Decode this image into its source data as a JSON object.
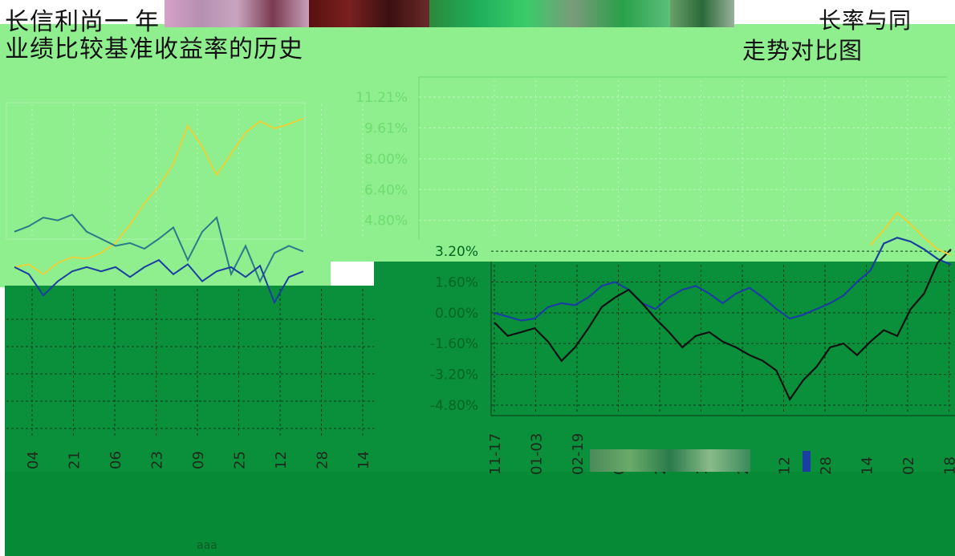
{
  "titles": {
    "left_line1": "长信利尚一",
    "left_line1_tail": "年",
    "left_line2": "业绩比较基准收益率的历史",
    "right_line1": "长率与同",
    "right_line2": "走势对比图"
  },
  "footer": {
    "caption": "aaa"
  },
  "colors": {
    "light_green": "#8fef8f",
    "dark_green": "#0a8f3a",
    "series_blue": "#1a3fa0",
    "series_yellow": "#e8d23a",
    "series_black": "#111111",
    "series_teal": "#2a7a8a"
  },
  "chart_data": [
    {
      "type": "line",
      "x_tick_labels": [
        "04",
        "21",
        "06",
        "23",
        "09",
        "25",
        "12",
        "28",
        "14"
      ],
      "series": [
        {
          "color_key": "series_yellow",
          "values": [
            -0.5,
            -0.3,
            -1.0,
            -0.2,
            0.2,
            0.1,
            0.5,
            1.2,
            2.5,
            4.0,
            5.2,
            6.8,
            9.5,
            8.0,
            6.0,
            7.5,
            9.0,
            9.8,
            9.3,
            9.6,
            10.0
          ]
        },
        {
          "color_key": "series_teal",
          "values": [
            2.0,
            2.4,
            3.0,
            2.8,
            3.2,
            2.0,
            1.5,
            1.0,
            1.2,
            0.8,
            1.5,
            2.3,
            0.0,
            2.0,
            3.0,
            -1.0,
            1.0,
            -1.5,
            0.5,
            1.0,
            0.6
          ]
        },
        {
          "color_key": "series_blue",
          "values": [
            -0.5,
            -1.0,
            -2.5,
            -1.5,
            -0.8,
            -0.5,
            -0.8,
            -0.5,
            -1.2,
            -0.5,
            0.0,
            -1.0,
            -0.3,
            -1.5,
            -0.8,
            -0.5,
            -1.2,
            -0.4,
            -3.0,
            -1.2,
            -0.8
          ]
        }
      ]
    },
    {
      "type": "line",
      "y_tick_labels": [
        "11.21%",
        "9.61%",
        "8.00%",
        "6.40%",
        "4.80%",
        "3.20%",
        "1.60%",
        "0.00%",
        "-1.60%",
        "-3.20%",
        "-4.80%"
      ],
      "y_ticks": [
        11.21,
        9.61,
        8.0,
        6.4,
        4.8,
        3.2,
        1.6,
        0.0,
        -1.6,
        -3.2,
        -4.8
      ],
      "ylim": [
        -4.8,
        11.21
      ],
      "x_tick_labels": [
        "11-17",
        "01-03",
        "02-19",
        "07",
        "24",
        "10",
        "26",
        "12",
        "28",
        "14",
        "02",
        "18"
      ],
      "series": [
        {
          "color_key": "series_blue",
          "values": [
            0.0,
            -0.2,
            -0.4,
            -0.3,
            0.3,
            0.5,
            0.4,
            0.8,
            1.4,
            1.6,
            1.2,
            0.5,
            0.2,
            0.8,
            1.2,
            1.4,
            1.0,
            0.5,
            1.0,
            1.3,
            0.8,
            0.2,
            -0.3,
            -0.1,
            0.2,
            0.5,
            0.9,
            1.6,
            2.2,
            3.6,
            3.9,
            3.7,
            3.3,
            2.8,
            2.5
          ]
        },
        {
          "color_key": "series_black",
          "values": [
            -0.5,
            -1.2,
            -1.0,
            -0.8,
            -1.5,
            -2.5,
            -1.8,
            -0.8,
            0.3,
            0.8,
            1.2,
            0.5,
            -0.3,
            -1.0,
            -1.8,
            -1.2,
            -1.0,
            -1.5,
            -1.8,
            -2.2,
            -2.5,
            -3.0,
            -4.5,
            -3.5,
            -2.8,
            -1.8,
            -1.6,
            -2.2,
            -1.5,
            -0.9,
            -1.2,
            0.2,
            1.0,
            2.6,
            3.3
          ]
        },
        {
          "color_key": "series_yellow",
          "values": [
            null,
            null,
            null,
            null,
            null,
            null,
            null,
            null,
            null,
            null,
            null,
            null,
            null,
            null,
            null,
            null,
            null,
            null,
            null,
            null,
            null,
            null,
            null,
            null,
            null,
            null,
            null,
            null,
            3.5,
            4.3,
            5.2,
            4.6,
            3.9,
            3.3,
            3.0
          ]
        }
      ]
    }
  ]
}
